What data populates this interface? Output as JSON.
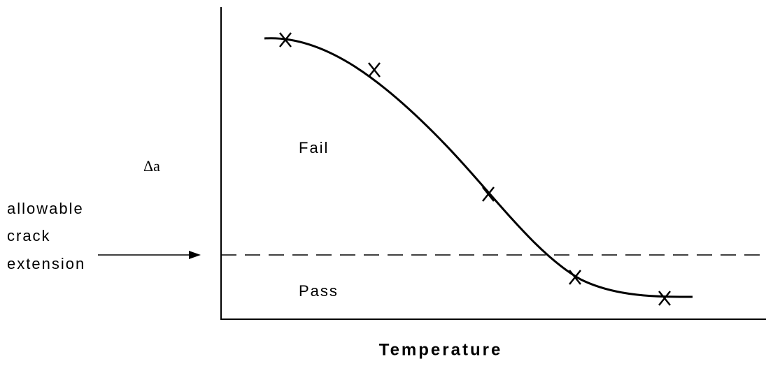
{
  "labels": {
    "y_axis": "Δa",
    "x_axis": "Temperature",
    "fail": "Fail",
    "pass": "Pass",
    "threshold": [
      "allowable",
      "crack",
      "extension"
    ]
  }
}
